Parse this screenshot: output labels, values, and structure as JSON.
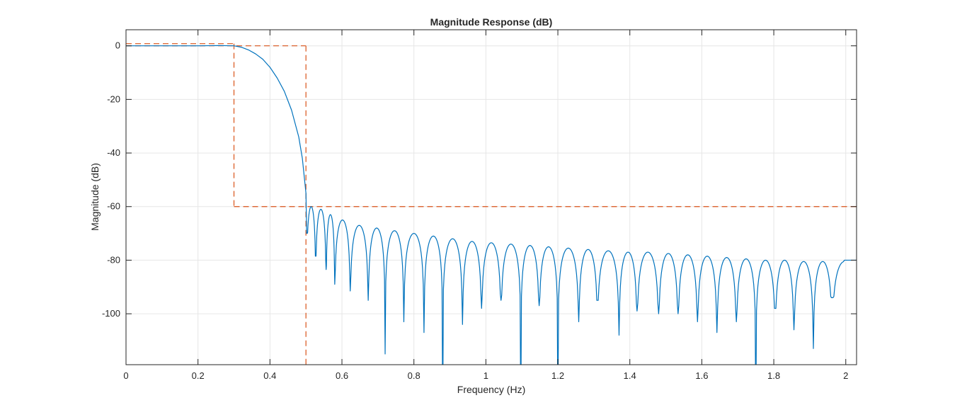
{
  "chart_data": {
    "type": "line",
    "title": "Magnitude Response (dB)",
    "xlabel": "Frequency (Hz)",
    "ylabel": "Magnitude (dB)",
    "xlim": [
      0,
      2.03
    ],
    "ylim": [
      -119,
      6
    ],
    "xticks": [
      0,
      0.2,
      0.4,
      0.6,
      0.8,
      1,
      1.2,
      1.4,
      1.6,
      1.8,
      2
    ],
    "xtick_labels": [
      "0",
      "0.2",
      "0.4",
      "0.6",
      "0.8",
      "1",
      "1.2",
      "1.4",
      "1.6",
      "1.8",
      "2"
    ],
    "yticks": [
      0,
      -20,
      -40,
      -60,
      -80,
      -100
    ],
    "ytick_labels": [
      "0",
      "-20",
      "-40",
      "-60",
      "-80",
      "-100"
    ],
    "grid": true,
    "colors": {
      "response": "#0072BD",
      "mask": "#D95319",
      "grid": "#e6e6e6",
      "axes": "#262626"
    },
    "passband_curve": {
      "x": [
        0,
        0.1,
        0.2,
        0.26,
        0.3,
        0.32,
        0.34,
        0.36,
        0.38,
        0.4,
        0.42,
        0.44,
        0.46,
        0.48,
        0.49,
        0.5,
        0.502
      ],
      "y": [
        0,
        0,
        0,
        0.1,
        0,
        -0.5,
        -1.5,
        -3,
        -5,
        -8,
        -12,
        -17,
        -24,
        -34,
        -42,
        -55,
        -70
      ]
    },
    "stopband_lobes": {
      "nulls": [
        0.502,
        0.527,
        0.556,
        0.58,
        0.623,
        0.673,
        0.72,
        0.772,
        0.828,
        0.88,
        0.935,
        0.988,
        1.042,
        1.097,
        1.148,
        1.2,
        1.258,
        1.31,
        1.37,
        1.42,
        1.48,
        1.534,
        1.588,
        1.642,
        1.696,
        1.75,
        1.804,
        1.856,
        1.91,
        1.962,
        2.03
      ],
      "null_depths": [
        -70,
        -78.5,
        -83.5,
        -89,
        -91.5,
        -95,
        -115,
        -103,
        -107,
        -140,
        -104,
        -98,
        -95,
        -140,
        -97,
        -140,
        -103,
        -95,
        -108,
        -99,
        -100,
        -100,
        -103,
        -107,
        -103,
        -140,
        -98,
        -106,
        -113,
        -94
      ],
      "peaks": [
        -60,
        -61,
        -63,
        -65,
        -67,
        -68,
        -69,
        -70,
        -71,
        -72,
        -73,
        -73.5,
        -74,
        -74.5,
        -75,
        -75.5,
        -76,
        -76.5,
        -77,
        -77,
        -77.5,
        -78,
        -78.5,
        -79,
        -79.5,
        -80,
        -80,
        -80.5,
        -80.5,
        -80.5
      ]
    },
    "mask": {
      "passband": {
        "x_end": 0.3,
        "y_upper": 0.8,
        "y_lower": 0
      },
      "transition_x": 0.5,
      "stopband": {
        "x_start": 0.3,
        "y": -60
      }
    }
  }
}
